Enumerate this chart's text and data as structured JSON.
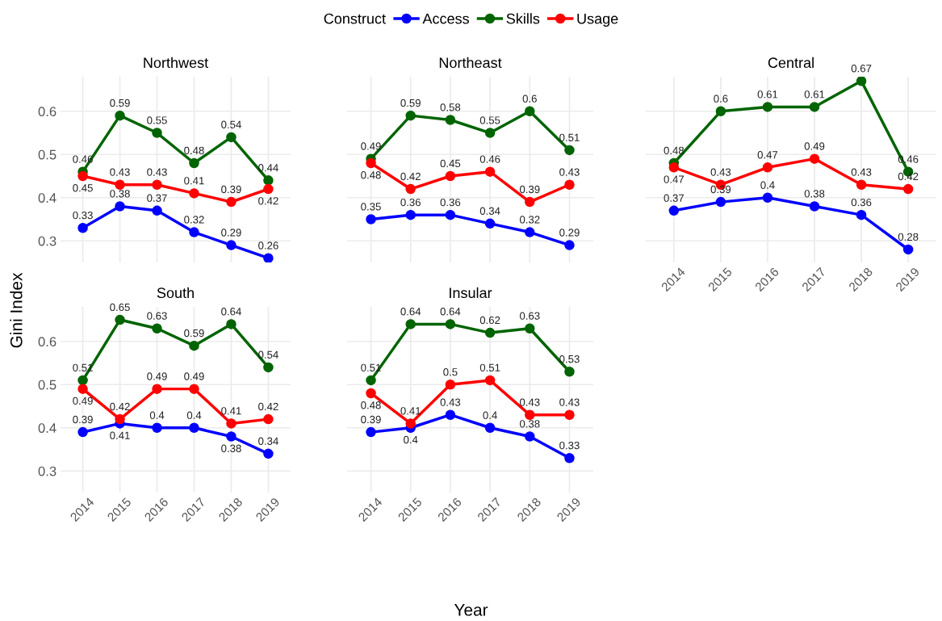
{
  "chart_data": [
    {
      "type": "line",
      "title": "Northwest",
      "ylabel": "Gini Index",
      "legend_title": "Construct",
      "legend": "top",
      "categories": [
        "2014",
        "2015",
        "2016",
        "2017",
        "2018",
        "2019"
      ],
      "ylim": [
        0.25,
        0.68
      ],
      "yticks": [
        0.3,
        0.4,
        0.5,
        0.6
      ],
      "tick_labels": "y",
      "grid": true,
      "marker": "circle",
      "line_style": "solid",
      "data_labels": true,
      "series": [
        {
          "name": "Access",
          "color": "#0000ff",
          "values": [
            0.33,
            0.38,
            0.37,
            0.32,
            0.29,
            0.26
          ]
        },
        {
          "name": "Skills",
          "color": "#006400",
          "values": [
            0.46,
            0.59,
            0.55,
            0.48,
            0.54,
            0.44
          ]
        },
        {
          "name": "Usage",
          "color": "#ff0000",
          "values": [
            0.45,
            0.43,
            0.43,
            0.41,
            0.39,
            0.42
          ]
        }
      ]
    },
    {
      "type": "line",
      "title": "Northeast",
      "categories": [
        "2014",
        "2015",
        "2016",
        "2017",
        "2018",
        "2019"
      ],
      "ylim": [
        0.25,
        0.68
      ],
      "yticks": [
        0.3,
        0.4,
        0.5,
        0.6
      ],
      "tick_labels": false,
      "grid": true,
      "marker": "circle",
      "line_style": "solid",
      "data_labels": true,
      "series": [
        {
          "color": "#0000ff",
          "values": [
            0.35,
            0.36,
            0.36,
            0.34,
            0.32,
            0.29
          ]
        },
        {
          "color": "#006400",
          "values": [
            0.49,
            0.59,
            0.58,
            0.55,
            0.6,
            0.51
          ]
        },
        {
          "color": "#ff0000",
          "values": [
            0.48,
            0.42,
            0.45,
            0.46,
            0.39,
            0.43
          ]
        }
      ]
    },
    {
      "type": "line",
      "title": "Central",
      "categories": [
        "2014",
        "2015",
        "2016",
        "2017",
        "2018",
        "2019"
      ],
      "ylim": [
        0.25,
        0.68
      ],
      "yticks": [
        0.3,
        0.4,
        0.5,
        0.6
      ],
      "tick_labels": "x",
      "grid": true,
      "marker": "circle",
      "line_style": "solid",
      "data_labels": true,
      "series": [
        {
          "color": "#0000ff",
          "values": [
            0.37,
            0.39,
            0.4,
            0.38,
            0.36,
            0.28
          ]
        },
        {
          "color": "#006400",
          "values": [
            0.48,
            0.6,
            0.61,
            0.61,
            0.67,
            0.46
          ]
        },
        {
          "color": "#ff0000",
          "values": [
            0.47,
            0.43,
            0.47,
            0.49,
            0.43,
            0.42
          ]
        }
      ]
    },
    {
      "type": "line",
      "title": "South",
      "categories": [
        "2014",
        "2015",
        "2016",
        "2017",
        "2018",
        "2019"
      ],
      "ylim": [
        0.25,
        0.68
      ],
      "yticks": [
        0.3,
        0.4,
        0.5,
        0.6
      ],
      "grid": true,
      "marker": "circle",
      "line_style": "solid",
      "data_labels": true,
      "series": [
        {
          "color": "#0000ff",
          "values": [
            0.39,
            0.41,
            0.4,
            0.4,
            0.38,
            0.34
          ]
        },
        {
          "color": "#006400",
          "values": [
            0.51,
            0.65,
            0.63,
            0.59,
            0.64,
            0.54
          ]
        },
        {
          "color": "#ff0000",
          "values": [
            0.49,
            0.42,
            0.49,
            0.49,
            0.41,
            0.42
          ]
        }
      ]
    },
    {
      "type": "line",
      "title": "Insular",
      "xlabel": "Year",
      "categories": [
        "2014",
        "2015",
        "2016",
        "2017",
        "2018",
        "2019"
      ],
      "ylim": [
        0.25,
        0.68
      ],
      "yticks": [
        0.3,
        0.4,
        0.5,
        0.6
      ],
      "tick_labels": "x",
      "grid": true,
      "marker": "circle",
      "line_style": "solid",
      "data_labels": true,
      "series": [
        {
          "color": "#0000ff",
          "values": [
            0.39,
            0.4,
            0.43,
            0.4,
            0.38,
            0.33
          ]
        },
        {
          "color": "#006400",
          "values": [
            0.51,
            0.64,
            0.64,
            0.62,
            0.63,
            0.53
          ]
        },
        {
          "color": "#ff0000",
          "values": [
            0.48,
            0.41,
            0.5,
            0.51,
            0.43,
            0.43
          ]
        }
      ]
    }
  ]
}
